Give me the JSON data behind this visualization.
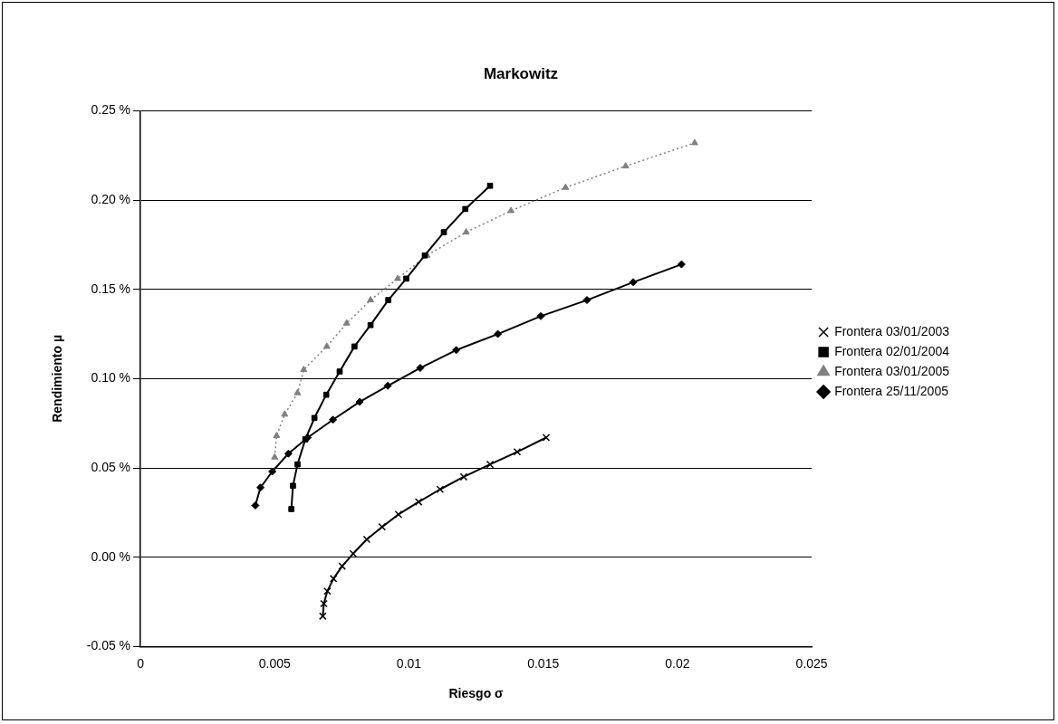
{
  "chart_data": {
    "type": "line",
    "title": "Markowitz",
    "xlabel": "Riesgo σ",
    "ylabel": "Rendimiento µ",
    "xlim": [
      0,
      0.025
    ],
    "xticks": [
      0,
      0.005,
      0.01,
      0.015,
      0.02,
      0.025
    ],
    "ylim": [
      -0.05,
      0.25
    ],
    "yticks": [
      {
        "value": -0.05,
        "label": "-0.05 %"
      },
      {
        "value": 0,
        "label": "0.00 %"
      },
      {
        "value": 0.05,
        "label": "0.05 %"
      },
      {
        "value": 0.1,
        "label": "0.10 %"
      },
      {
        "value": 0.15,
        "label": "0.15 %"
      },
      {
        "value": 0.2,
        "label": "0.20 %"
      },
      {
        "value": 0.25,
        "label": "0.25 %"
      }
    ],
    "grid": "y",
    "legend": "right",
    "series": [
      {
        "name": "Frontera 03/01/2003",
        "color": "#000000",
        "marker": "cross",
        "line_style": "solid",
        "x": [
          0.00679,
          0.00683,
          0.00696,
          0.00719,
          0.00751,
          0.00792,
          0.00843,
          0.009,
          0.00961,
          0.01036,
          0.01116,
          0.01204,
          0.01302,
          0.01403,
          0.01511
        ],
        "values": [
          -0.033,
          -0.026,
          -0.019,
          -0.012,
          -0.005,
          0.002,
          0.01,
          0.017,
          0.024,
          0.031,
          0.038,
          0.045,
          0.052,
          0.059,
          0.067
        ]
      },
      {
        "name": "Frontera 02/01/2004",
        "color": "#000000",
        "marker": "square",
        "line_style": "solid",
        "x": [
          0.00562,
          0.00568,
          0.00585,
          0.00614,
          0.00648,
          0.00692,
          0.00742,
          0.00797,
          0.00857,
          0.00923,
          0.0099,
          0.01059,
          0.0113,
          0.0121,
          0.01302
        ],
        "values": [
          0.027,
          0.04,
          0.052,
          0.066,
          0.078,
          0.091,
          0.104,
          0.118,
          0.13,
          0.144,
          0.156,
          0.169,
          0.182,
          0.195,
          0.208
        ]
      },
      {
        "name": "Frontera 03/01/2005",
        "color": "#808080",
        "marker": "triangle",
        "line_style": "dotted",
        "x": [
          0.005,
          0.00507,
          0.00537,
          0.00585,
          0.00608,
          0.00694,
          0.00768,
          0.00857,
          0.00958,
          0.01067,
          0.01213,
          0.0138,
          0.01583,
          0.01807,
          0.02064
        ],
        "values": [
          0.056,
          0.068,
          0.08,
          0.092,
          0.105,
          0.118,
          0.131,
          0.144,
          0.156,
          0.169,
          0.182,
          0.194,
          0.207,
          0.219,
          0.232
        ]
      },
      {
        "name": "Frontera 25/11/2005",
        "color": "#000000",
        "marker": "diamond",
        "line_style": "solid",
        "x": [
          0.00428,
          0.00447,
          0.00491,
          0.00551,
          0.00623,
          0.00717,
          0.00816,
          0.00921,
          0.01042,
          0.01176,
          0.01331,
          0.01491,
          0.01663,
          0.01835,
          0.02015
        ],
        "values": [
          0.029,
          0.039,
          0.048,
          0.058,
          0.067,
          0.077,
          0.087,
          0.096,
          0.106,
          0.116,
          0.125,
          0.135,
          0.144,
          0.154,
          0.164
        ]
      }
    ]
  }
}
